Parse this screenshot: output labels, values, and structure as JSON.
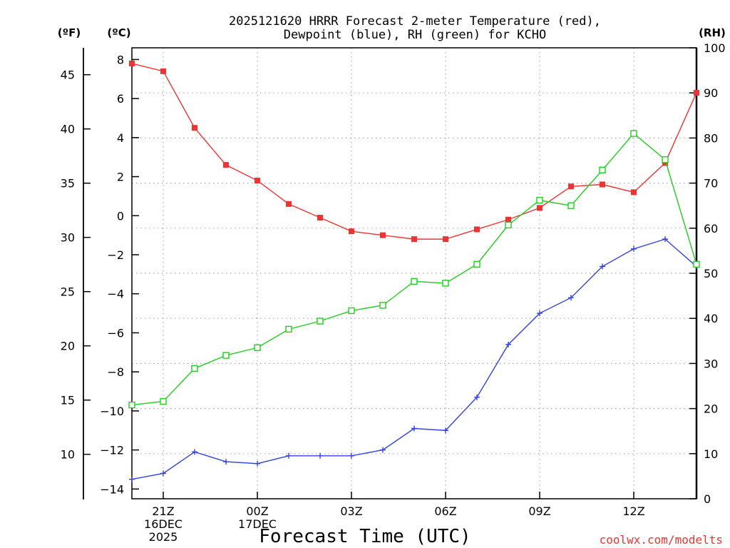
{
  "chart_data": {
    "type": "line",
    "title_line1": "2025121620 HRRR Forecast 2-meter Temperature (red),",
    "title_line2": "Dewpoint (blue), RH (green) for KCHO",
    "xlabel": "Forecast Time (UTC)",
    "credit": "coolwx.com/modelts",
    "unit_left_f": "(ºF)",
    "unit_left_c": "(ºC)",
    "unit_right": "(RH)",
    "x_hours": [
      0,
      1,
      2,
      3,
      4,
      5,
      6,
      7,
      8,
      9,
      10,
      11,
      12,
      13,
      14,
      15,
      16,
      17,
      18
    ],
    "x_ticks": [
      {
        "hour": 1,
        "lines": [
          "21Z",
          "16DEC",
          "2025"
        ]
      },
      {
        "hour": 4,
        "lines": [
          "00Z",
          "17DEC"
        ]
      },
      {
        "hour": 7,
        "lines": [
          "03Z"
        ]
      },
      {
        "hour": 10,
        "lines": [
          "06Z"
        ]
      },
      {
        "hour": 13,
        "lines": [
          "09Z"
        ]
      },
      {
        "hour": 16,
        "lines": [
          "12Z"
        ]
      }
    ],
    "c_axis": {
      "range": [
        -14.5,
        8.6
      ],
      "ticks": [
        8,
        6,
        4,
        2,
        0,
        -2,
        -4,
        -6,
        -8,
        -10,
        -12,
        -14
      ]
    },
    "f_axis": {
      "ticks": [
        45,
        40,
        35,
        30,
        25,
        20,
        15,
        10
      ]
    },
    "rh_axis": {
      "range": [
        0,
        100
      ],
      "ticks": [
        100,
        90,
        80,
        70,
        60,
        50,
        40,
        30,
        20,
        10,
        0
      ]
    },
    "series": [
      {
        "name": "Temperature",
        "axis": "c",
        "color": "#ee3333",
        "marker": "square-filled",
        "values": [
          7.8,
          7.4,
          4.5,
          2.6,
          1.8,
          0.6,
          -0.1,
          -0.8,
          -1.0,
          -1.2,
          -1.2,
          -0.7,
          -0.2,
          0.4,
          1.5,
          1.6,
          1.2,
          2.7,
          6.3
        ]
      },
      {
        "name": "Dewpoint",
        "axis": "c",
        "color": "#3344dd",
        "marker": "plus",
        "values": [
          -13.5,
          -13.2,
          -12.1,
          -12.6,
          -12.7,
          -12.3,
          -12.3,
          -12.3,
          -12.0,
          -10.9,
          -11.0,
          -9.3,
          -6.6,
          -5.0,
          -4.2,
          -2.6,
          -1.7,
          -1.2,
          -2.6
        ]
      },
      {
        "name": "RH",
        "axis": "rh",
        "color": "#22cc22",
        "marker": "square-open",
        "values": [
          20.8,
          21.6,
          28.9,
          31.8,
          33.5,
          37.6,
          39.4,
          41.7,
          42.9,
          48.2,
          47.8,
          52.0,
          60.7,
          66.2,
          65.0,
          72.9,
          81.0,
          75.2,
          52.0
        ]
      }
    ]
  }
}
